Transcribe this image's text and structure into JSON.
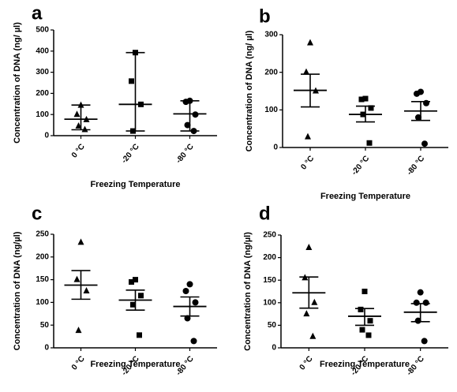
{
  "chart_data": [
    {
      "type": "scatter",
      "label": "a",
      "ylabel": "Concentration of DNA (ng/ µl)",
      "xlabel": "Freezing Temperature",
      "categories": [
        "0 °C",
        "-20 °C",
        "-80 °C"
      ],
      "markers": [
        "triangle",
        "square",
        "circle"
      ],
      "color": "#000000",
      "ylim": [
        0,
        500
      ],
      "yticks": [
        0,
        100,
        200,
        300,
        400,
        500
      ],
      "points": [
        [
          143,
          100,
          75,
          45,
          28
        ],
        [
          393,
          258,
          148,
          22
        ],
        [
          165,
          160,
          100,
          50,
          22
        ]
      ],
      "center": [
        78,
        148,
        103
      ],
      "lower": [
        28,
        22,
        22
      ],
      "upper": [
        145,
        393,
        165
      ]
    },
    {
      "type": "scatter",
      "label": "b",
      "ylabel": "Concentration of DNA (ng/ µl)",
      "xlabel": "Freezing Temperature",
      "categories": [
        "0 °C",
        "-20 °C",
        "-80 °C"
      ],
      "markers": [
        "triangle",
        "square",
        "circle"
      ],
      "color": "#000000",
      "ylim": [
        0,
        300
      ],
      "yticks": [
        0,
        100,
        200,
        300
      ],
      "points": [
        [
          278,
          200,
          150,
          28
        ],
        [
          130,
          128,
          105,
          88,
          12
        ],
        [
          148,
          143,
          118,
          80,
          10
        ]
      ],
      "center": [
        152,
        88,
        97
      ],
      "lower": [
        108,
        68,
        72
      ],
      "upper": [
        195,
        110,
        122
      ]
    },
    {
      "type": "scatter",
      "label": "c",
      "ylabel": "Concentration of DNA (ng/µl)",
      "xlabel": "Freezing Temperature",
      "categories": [
        "0 °C",
        "-20 °C",
        "-80 °C"
      ],
      "markers": [
        "triangle",
        "square",
        "circle"
      ],
      "color": "#000000",
      "ylim": [
        0,
        250
      ],
      "yticks": [
        0,
        50,
        100,
        150,
        200,
        250
      ],
      "points": [
        [
          232,
          150,
          125,
          38
        ],
        [
          150,
          145,
          115,
          95,
          28
        ],
        [
          140,
          125,
          100,
          65,
          15
        ]
      ],
      "center": [
        138,
        105,
        91
      ],
      "lower": [
        107,
        83,
        70
      ],
      "upper": [
        170,
        127,
        112
      ]
    },
    {
      "type": "scatter",
      "label": "d",
      "ylabel": "Concentration of DNA (ng/µl)",
      "xlabel": "Freezing Temperature",
      "categories": [
        "0 °C",
        "-20 °C",
        "-80 °C"
      ],
      "markers": [
        "triangle",
        "square",
        "circle"
      ],
      "color": "#000000",
      "ylim": [
        0,
        250
      ],
      "yticks": [
        0,
        50,
        100,
        150,
        200,
        250
      ],
      "points": [
        [
          222,
          155,
          100,
          75,
          25
        ],
        [
          125,
          85,
          60,
          40,
          28
        ],
        [
          123,
          100,
          100,
          60,
          15
        ]
      ],
      "center": [
        122,
        70,
        79
      ],
      "lower": [
        88,
        50,
        58
      ],
      "upper": [
        157,
        87,
        98
      ]
    }
  ]
}
